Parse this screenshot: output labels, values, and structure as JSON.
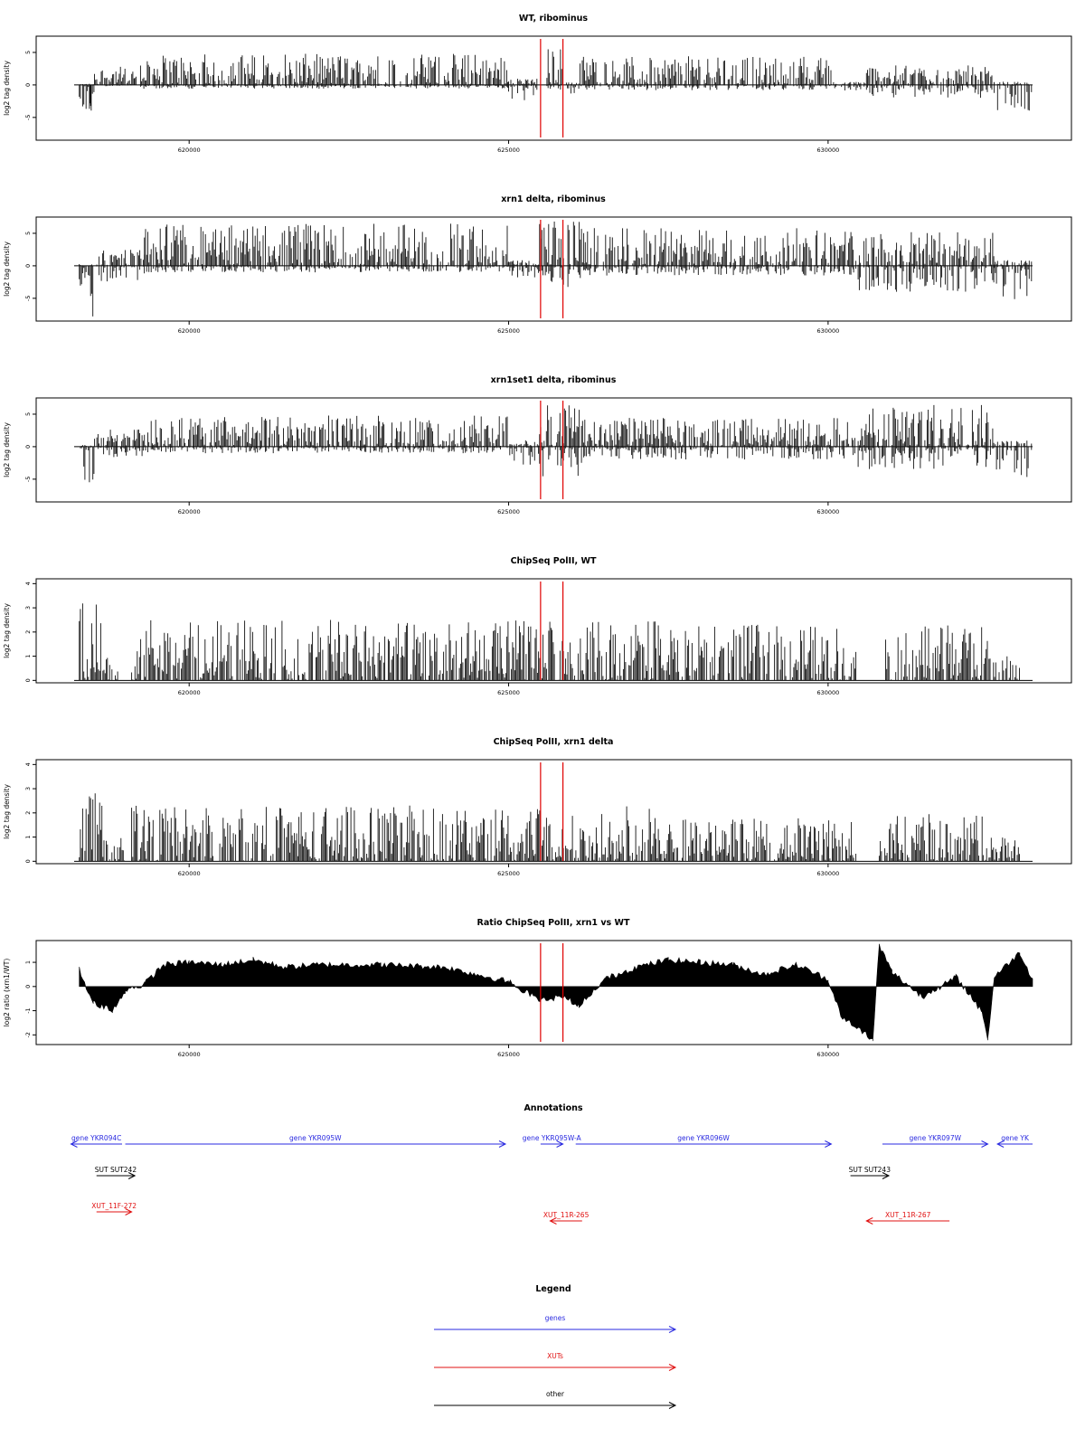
{
  "chart_data": [
    {
      "type": "bar",
      "title": "WT, ribominus",
      "ylabel": "log2 tag density",
      "xlim": [
        618200,
        633200
      ],
      "ylim": [
        -8.5,
        7.5
      ],
      "yticks": [
        -5,
        0,
        5
      ],
      "xticks": [
        620000,
        625000,
        630000
      ],
      "xtick_labels": [
        "620000",
        "625000",
        "630000"
      ],
      "highlight_x": [
        625500,
        625850
      ],
      "highlight_color": "#e00000",
      "series": [
        {
          "segments": [
            {
              "x": [
                618280,
                618520
              ],
              "lo": -5.0,
              "hi": 0.2
            },
            {
              "x": [
                618450,
                618520
              ],
              "lo": -5.3,
              "hi": -2.5
            },
            {
              "x": [
                618500,
                619150
              ],
              "lo": -0.2,
              "hi": 2.8
            },
            {
              "x": [
                619150,
                625000
              ],
              "lo": -0.6,
              "hi": 4.8
            },
            {
              "x": [
                625000,
                625450
              ],
              "lo": -2.5,
              "hi": 1.0
            },
            {
              "x": [
                625600,
                625850
              ],
              "lo": -0.8,
              "hi": 5.8
            },
            {
              "x": [
                625850,
                626100
              ],
              "lo": -1.5,
              "hi": 0.5
            },
            {
              "x": [
                626100,
                630050
              ],
              "lo": -0.8,
              "hi": 4.5
            },
            {
              "x": [
                630050,
                630600
              ],
              "lo": -1.0,
              "hi": 0.5
            },
            {
              "x": [
                630600,
                632600
              ],
              "lo": -2.0,
              "hi": 3.0
            },
            {
              "x": [
                632600,
                633200
              ],
              "lo": -4.3,
              "hi": 0.5
            }
          ]
        }
      ]
    },
    {
      "type": "bar",
      "title": "xrn1 delta, ribominus",
      "ylabel": "log2 tag density",
      "xlim": [
        618200,
        633200
      ],
      "ylim": [
        -8.5,
        7.5
      ],
      "yticks": [
        -5,
        0,
        5
      ],
      "xticks": [
        620000,
        625000,
        630000
      ],
      "xtick_labels": [
        "620000",
        "625000",
        "630000"
      ],
      "highlight_x": [
        625500,
        625850
      ],
      "highlight_color": "#e00000",
      "series": [
        {
          "segments": [
            {
              "x": [
                618280,
                618520
              ],
              "lo": -8.0,
              "hi": 0.3
            },
            {
              "x": [
                618520,
                619300
              ],
              "lo": -2.5,
              "hi": 2.5
            },
            {
              "x": [
                619300,
                625000
              ],
              "lo": -1.0,
              "hi": 6.5
            },
            {
              "x": [
                625000,
                625450
              ],
              "lo": -2.0,
              "hi": 1.0
            },
            {
              "x": [
                625450,
                626200
              ],
              "lo": -3.5,
              "hi": 7.2
            },
            {
              "x": [
                626200,
                630400
              ],
              "lo": -1.5,
              "hi": 5.8
            },
            {
              "x": [
                630400,
                632600
              ],
              "lo": -4.0,
              "hi": 5.5
            },
            {
              "x": [
                632600,
                633200
              ],
              "lo": -5.5,
              "hi": 1.0
            }
          ]
        }
      ]
    },
    {
      "type": "bar",
      "title": "xrn1set1 delta, ribominus",
      "ylabel": "log2 tag density",
      "xlim": [
        618200,
        633200
      ],
      "ylim": [
        -8.5,
        7.5
      ],
      "yticks": [
        -5,
        0,
        5
      ],
      "xticks": [
        620000,
        625000,
        630000
      ],
      "xtick_labels": [
        "620000",
        "625000",
        "630000"
      ],
      "highlight_x": [
        625500,
        625850
      ],
      "highlight_color": "#e00000",
      "series": [
        {
          "segments": [
            {
              "x": [
                618280,
                618520
              ],
              "lo": -5.8,
              "hi": 0.3
            },
            {
              "x": [
                618520,
                619300
              ],
              "lo": -2.0,
              "hi": 2.8
            },
            {
              "x": [
                619300,
                625000
              ],
              "lo": -1.0,
              "hi": 4.8
            },
            {
              "x": [
                625000,
                625450
              ],
              "lo": -3.0,
              "hi": 1.0
            },
            {
              "x": [
                625450,
                626200
              ],
              "lo": -5.0,
              "hi": 6.5
            },
            {
              "x": [
                626200,
                630400
              ],
              "lo": -2.0,
              "hi": 4.5
            },
            {
              "x": [
                630400,
                632600
              ],
              "lo": -3.5,
              "hi": 6.5
            },
            {
              "x": [
                632600,
                633200
              ],
              "lo": -5.0,
              "hi": 1.0
            }
          ]
        }
      ]
    },
    {
      "type": "bar",
      "title": "ChipSeq PolII, WT",
      "ylabel": "log2 tag density",
      "xlim": [
        618200,
        633200
      ],
      "ylim": [
        -0.1,
        4.2
      ],
      "yticks": [
        0,
        1,
        2,
        3,
        4
      ],
      "xticks": [
        620000,
        625000,
        630000
      ],
      "xtick_labels": [
        "620000",
        "625000",
        "630000"
      ],
      "highlight_x": [
        625500,
        625850
      ],
      "highlight_color": "#e00000",
      "series": [
        {
          "segments": [
            {
              "x": [
                618280,
                618650
              ],
              "lo": 0,
              "hi": 4.0
            },
            {
              "x": [
                618650,
                618900
              ],
              "lo": 0,
              "hi": 1.0
            },
            {
              "x": [
                619100,
                627800
              ],
              "lo": 0,
              "hi": 2.5
            },
            {
              "x": [
                627800,
                630450
              ],
              "lo": 0,
              "hi": 2.3
            },
            {
              "x": [
                630900,
                632500
              ],
              "lo": 0,
              "hi": 2.3
            },
            {
              "x": [
                632500,
                633000
              ],
              "lo": 0,
              "hi": 1.0
            }
          ]
        }
      ]
    },
    {
      "type": "bar",
      "title": "ChipSeq PolII, xrn1 delta",
      "ylabel": "log2 tag density",
      "xlim": [
        618200,
        633200
      ],
      "ylim": [
        -0.1,
        4.2
      ],
      "yticks": [
        0,
        1,
        2,
        3,
        4
      ],
      "xticks": [
        620000,
        625000,
        630000
      ],
      "xtick_labels": [
        "620000",
        "625000",
        "630000"
      ],
      "highlight_x": [
        625500,
        625850
      ],
      "highlight_color": "#e00000",
      "series": [
        {
          "segments": [
            {
              "x": [
                618280,
                618650
              ],
              "lo": 0,
              "hi": 3.1
            },
            {
              "x": [
                618650,
                619000
              ],
              "lo": 0,
              "hi": 1.0
            },
            {
              "x": [
                619100,
                627800
              ],
              "lo": 0,
              "hi": 2.3
            },
            {
              "x": [
                627800,
                630450
              ],
              "lo": 0,
              "hi": 1.8
            },
            {
              "x": [
                630800,
                632500
              ],
              "lo": 0,
              "hi": 2.0
            },
            {
              "x": [
                632500,
                633000
              ],
              "lo": 0,
              "hi": 1.0
            }
          ]
        }
      ]
    },
    {
      "type": "area",
      "title": "Ratio ChipSeq PolII, xrn1 vs WT",
      "ylabel": "log2 ratio (xrn1/WT)",
      "xlim": [
        618200,
        633200
      ],
      "ylim": [
        -2.4,
        1.9
      ],
      "yticks": [
        -2,
        -1,
        0,
        1
      ],
      "xticks": [
        620000,
        625000,
        630000
      ],
      "xtick_labels": [
        "620000",
        "625000",
        "630000"
      ],
      "highlight_x": [
        625500,
        625850
      ],
      "highlight_color": "#e00000",
      "series": [
        {
          "x": [
            618280,
            618500,
            618800,
            619000,
            619300,
            619600,
            620000,
            620500,
            621000,
            621500,
            622000,
            623000,
            624000,
            625000,
            625500,
            625850,
            626100,
            626500,
            627000,
            627500,
            628000,
            628500,
            629000,
            629500,
            630000,
            630200,
            630700,
            630800,
            631000,
            631500,
            632000,
            632400,
            632500,
            632600,
            633000,
            633200
          ],
          "y": [
            0.7,
            -0.7,
            -1.0,
            -0.2,
            0.1,
            0.9,
            1.0,
            0.9,
            1.1,
            0.8,
            0.9,
            0.9,
            0.8,
            0.2,
            -0.6,
            -0.4,
            -0.8,
            0.3,
            0.8,
            1.1,
            1.0,
            0.9,
            0.5,
            0.9,
            0.3,
            -1.2,
            -2.2,
            1.7,
            0.6,
            -0.5,
            0.4,
            -1.0,
            -2.2,
            0.4,
            1.4,
            0.3
          ]
        }
      ]
    }
  ],
  "annotations": {
    "title": "Annotations",
    "colors": {
      "gene": "#2a2ae0",
      "xut": "#e01010",
      "other": "#000000"
    },
    "features": [
      {
        "label": "gene YKR094C",
        "type": "gene",
        "x": [
          618150,
          618950
        ],
        "dir": "left",
        "row": 0
      },
      {
        "label": "gene YKR095W",
        "type": "gene",
        "x": [
          619000,
          624950
        ],
        "dir": "right",
        "row": 0
      },
      {
        "label": "gene YKR095W-A",
        "type": "gene",
        "x": [
          625500,
          625850
        ],
        "dir": "right",
        "row": 0
      },
      {
        "label": "gene YKR096W",
        "type": "gene",
        "x": [
          626050,
          630050
        ],
        "dir": "right",
        "row": 0
      },
      {
        "label": "gene YKR097W",
        "type": "gene",
        "x": [
          630850,
          632500
        ],
        "dir": "right",
        "row": 0
      },
      {
        "label": "gene YK",
        "type": "gene",
        "x": [
          632650,
          633200
        ],
        "dir": "left",
        "row": 0
      },
      {
        "label": "SUT SUT242",
        "type": "other",
        "x": [
          618550,
          619150
        ],
        "dir": "right",
        "row": 1
      },
      {
        "label": "SUT SUT243",
        "type": "other",
        "x": [
          630350,
          630950
        ],
        "dir": "right",
        "row": 1
      },
      {
        "label": "XUT_11F-272",
        "type": "xut",
        "x": [
          618550,
          619100
        ],
        "dir": "right",
        "row": 2
      },
      {
        "label": "XUT_11R-265",
        "type": "xut",
        "x": [
          625650,
          626150
        ],
        "dir": "left",
        "row": 3
      },
      {
        "label": "XUT_11R-267",
        "type": "xut",
        "x": [
          630600,
          631900
        ],
        "dir": "left",
        "row": 3
      }
    ]
  },
  "legend": {
    "title": "Legend",
    "items": [
      {
        "label": "genes",
        "color": "#2a2ae0"
      },
      {
        "label": "XUTs",
        "color": "#e01010"
      },
      {
        "label": "other",
        "color": "#000000"
      }
    ]
  }
}
